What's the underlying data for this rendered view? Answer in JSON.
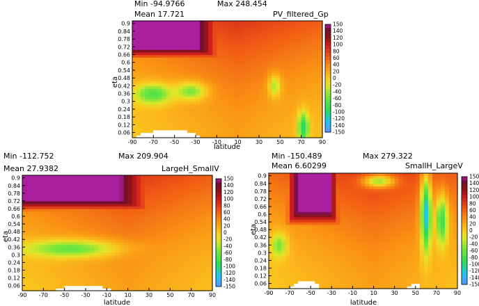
{
  "panels": [
    {
      "title": "PV_filtered_Gp",
      "min_label": "Min -94.9766",
      "max_label": "Max 248.454",
      "mean_label": "Mean 17.721",
      "xlabel": "latitude",
      "ylabel": "eta"
    },
    {
      "title": "LargeH_SmallV",
      "min_label": "Min -112.752",
      "max_label": "Max 209.904",
      "mean_label": "Mean 27.9382",
      "xlabel": "latitude",
      "ylabel": "eta"
    },
    {
      "title": "SmallH_LargeV",
      "min_label": "Min -150.489",
      "max_label": "Max 279.322",
      "mean_label": "Mean 6.60299",
      "xlabel": "latitude",
      "ylabel": "eta"
    }
  ],
  "chart_data": [
    {
      "type": "heatmap",
      "title": "PV_filtered_Gp",
      "xlabel": "latitude",
      "ylabel": "eta",
      "xlim": [
        -90,
        90
      ],
      "ylim": [
        0.02,
        0.92
      ],
      "x_ticks": [
        -90,
        -70,
        -50,
        -30,
        -10,
        10,
        30,
        50,
        70,
        90
      ],
      "y_ticks": [
        0.06,
        0.12,
        0.18,
        0.24,
        0.3,
        0.36,
        0.42,
        0.48,
        0.54,
        0.6,
        0.66,
        0.72,
        0.78,
        0.84,
        0.9
      ],
      "colorbar_ticks": [
        150,
        140,
        120,
        100,
        80,
        60,
        40,
        20,
        0,
        -20,
        -40,
        -60,
        -80,
        -100,
        -120,
        -140,
        -150
      ],
      "colorbar_range": [
        -150,
        150
      ],
      "stats": {
        "min": -94.9766,
        "max": 248.454,
        "mean": 17.721
      },
      "features": [
        {
          "kind": "max",
          "lat": [
            -85,
            -35
          ],
          "eta": [
            0.75,
            0.92
          ],
          "value": 150
        },
        {
          "kind": "blob",
          "lat": -70,
          "eta": 0.36,
          "rlat": 18,
          "reta": 0.08,
          "value": -70
        },
        {
          "kind": "blob",
          "lat": -35,
          "eta": 0.38,
          "rlat": 15,
          "reta": 0.07,
          "value": -50
        },
        {
          "kind": "blob",
          "lat": 45,
          "eta": 0.42,
          "rlat": 6,
          "reta": 0.09,
          "value": -35
        },
        {
          "kind": "blob",
          "lat": 72,
          "eta": 0.1,
          "rlat": 5,
          "reta": 0.12,
          "value": -95
        },
        {
          "kind": "undefined",
          "lat": [
            -85,
            -25
          ],
          "eta": [
            0.02,
            0.08
          ]
        }
      ]
    },
    {
      "type": "heatmap",
      "title": "LargeH_SmallV",
      "xlabel": "latitude",
      "ylabel": "eta",
      "xlim": [
        -90,
        90
      ],
      "ylim": [
        0.02,
        0.92
      ],
      "x_ticks": [
        -90,
        -70,
        -50,
        -30,
        -10,
        10,
        30,
        50,
        70,
        90
      ],
      "y_ticks": [
        0.06,
        0.12,
        0.18,
        0.24,
        0.3,
        0.36,
        0.42,
        0.48,
        0.54,
        0.6,
        0.66,
        0.72,
        0.78,
        0.84,
        0.9
      ],
      "colorbar_ticks": [
        150,
        140,
        120,
        100,
        80,
        60,
        40,
        20,
        0,
        -20,
        -40,
        -60,
        -80,
        -100,
        -120,
        -140,
        -150
      ],
      "colorbar_range": [
        -150,
        150
      ],
      "stats": {
        "min": -112.752,
        "max": 209.904,
        "mean": 27.9382
      },
      "features": [
        {
          "kind": "max",
          "lat": [
            -85,
            -5
          ],
          "eta": [
            0.76,
            0.92
          ],
          "value": 150
        },
        {
          "kind": "blob",
          "lat": -45,
          "eta": 0.35,
          "rlat": 45,
          "reta": 0.07,
          "value": -60
        },
        {
          "kind": "undefined",
          "lat": [
            -60,
            -5
          ],
          "eta": [
            0.02,
            0.06
          ]
        }
      ]
    },
    {
      "type": "heatmap",
      "title": "SmallH_LargeV",
      "xlabel": "latitude",
      "ylabel": "eta",
      "xlim": [
        -90,
        90
      ],
      "ylim": [
        0.02,
        0.92
      ],
      "x_ticks": [
        -90,
        -70,
        -50,
        -30,
        -10,
        10,
        30,
        50,
        70,
        90
      ],
      "y_ticks": [
        0.06,
        0.12,
        0.18,
        0.24,
        0.3,
        0.36,
        0.42,
        0.48,
        0.54,
        0.6,
        0.66,
        0.72,
        0.78,
        0.84,
        0.9
      ],
      "colorbar_ticks": [
        150,
        140,
        120,
        100,
        80,
        60,
        40,
        20,
        0,
        -20,
        -40,
        -60,
        -80,
        -100,
        -120,
        -140,
        -150
      ],
      "colorbar_range": [
        -150,
        150
      ],
      "stats": {
        "min": -150.489,
        "max": 279.322,
        "mean": 6.60299
      },
      "features": [
        {
          "kind": "max",
          "lat": [
            -55,
            -40
          ],
          "eta": [
            0.66,
            0.92
          ],
          "value": 150
        },
        {
          "kind": "blob",
          "lat": -80,
          "eta": 0.36,
          "rlat": 8,
          "reta": 0.1,
          "value": -50
        },
        {
          "kind": "blob",
          "lat": 15,
          "eta": 0.86,
          "rlat": 15,
          "reta": 0.05,
          "value": -40
        },
        {
          "kind": "blob",
          "lat": 60,
          "eta": 0.6,
          "rlat": 5,
          "reta": 0.3,
          "value": -120
        },
        {
          "kind": "blob",
          "lat": 75,
          "eta": 0.55,
          "rlat": 6,
          "reta": 0.2,
          "value": -80
        },
        {
          "kind": "undefined",
          "lat": [
            -70,
            -40
          ],
          "eta": [
            0.02,
            0.08
          ]
        },
        {
          "kind": "undefined",
          "lat": [
            42,
            55
          ],
          "eta": [
            0.02,
            0.06
          ]
        }
      ]
    }
  ]
}
